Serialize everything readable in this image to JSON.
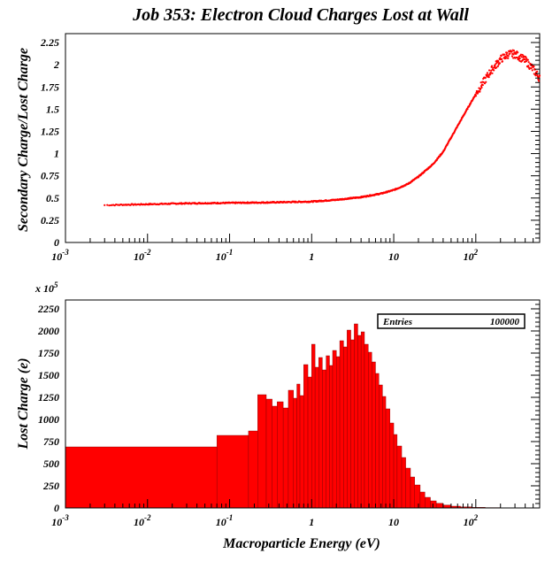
{
  "title": "Job 353: Electron Cloud Charges Lost at Wall",
  "chart_data": [
    {
      "type": "scatter",
      "ylabel": "Secondary Charge/Lost Charge",
      "xscale": "log",
      "xlim": [
        0.001,
        600
      ],
      "ylim": [
        0,
        2.35
      ],
      "xticks": [
        {
          "base": "10",
          "exp": "-3"
        },
        {
          "base": "10",
          "exp": "-2"
        },
        {
          "base": "10",
          "exp": "-1"
        },
        {
          "base": "1",
          "exp": ""
        },
        {
          "base": "10",
          "exp": ""
        },
        {
          "base": "10",
          "exp": "2"
        }
      ],
      "yticks": [
        "0",
        "0.25",
        "0.5",
        "0.75",
        "1",
        "1.25",
        "1.5",
        "1.75",
        "2",
        "2.25"
      ],
      "series_color": "#ff0000",
      "curve": [
        [
          0.003,
          0.42
        ],
        [
          0.01,
          0.43
        ],
        [
          0.03,
          0.44
        ],
        [
          0.1,
          0.445
        ],
        [
          0.3,
          0.45
        ],
        [
          1,
          0.46
        ],
        [
          2,
          0.48
        ],
        [
          4,
          0.51
        ],
        [
          7,
          0.55
        ],
        [
          10,
          0.59
        ],
        [
          15,
          0.66
        ],
        [
          20,
          0.74
        ],
        [
          30,
          0.88
        ],
        [
          40,
          1.02
        ],
        [
          50,
          1.18
        ],
        [
          70,
          1.42
        ],
        [
          100,
          1.67
        ],
        [
          150,
          1.92
        ],
        [
          200,
          2.06
        ],
        [
          250,
          2.12
        ],
        [
          300,
          2.12
        ],
        [
          400,
          2.05
        ],
        [
          500,
          1.95
        ],
        [
          600,
          1.85
        ]
      ]
    },
    {
      "type": "bar",
      "ylabel": "Lost Charge (e)",
      "xlabel": "Macroparticle Energy (eV)",
      "xscale": "log",
      "xlim": [
        0.001,
        600
      ],
      "ylim": [
        0,
        2350
      ],
      "y_multiplier": {
        "base": "x 10",
        "exp": "5"
      },
      "xticks": [
        {
          "base": "10",
          "exp": "-3"
        },
        {
          "base": "10",
          "exp": "-2"
        },
        {
          "base": "10",
          "exp": "-1"
        },
        {
          "base": "1",
          "exp": ""
        },
        {
          "base": "10",
          "exp": ""
        },
        {
          "base": "10",
          "exp": "2"
        }
      ],
      "yticks": [
        "0",
        "250",
        "500",
        "750",
        "1000",
        "1250",
        "1500",
        "1750",
        "2000",
        "2250"
      ],
      "fill_color": "#ff0000",
      "stats": {
        "label": "Entries",
        "value": "100000"
      },
      "bins": [
        [
          0.001,
          0.07,
          690
        ],
        [
          0.07,
          0.17,
          820
        ],
        [
          0.17,
          0.22,
          870
        ],
        [
          0.22,
          0.28,
          1280
        ],
        [
          0.28,
          0.33,
          1230
        ],
        [
          0.33,
          0.38,
          1150
        ],
        [
          0.38,
          0.45,
          1200
        ],
        [
          0.45,
          0.52,
          1130
        ],
        [
          0.52,
          0.6,
          1330
        ],
        [
          0.6,
          0.66,
          1240
        ],
        [
          0.66,
          0.72,
          1400
        ],
        [
          0.72,
          0.8,
          1270
        ],
        [
          0.8,
          0.9,
          1620
        ],
        [
          0.9,
          1.0,
          1480
        ],
        [
          1.0,
          1.1,
          1850
        ],
        [
          1.1,
          1.22,
          1590
        ],
        [
          1.22,
          1.35,
          1700
        ],
        [
          1.35,
          1.5,
          1560
        ],
        [
          1.5,
          1.65,
          1720
        ],
        [
          1.65,
          1.8,
          1610
        ],
        [
          1.8,
          2.0,
          1780
        ],
        [
          2.0,
          2.2,
          1710
        ],
        [
          2.2,
          2.45,
          1890
        ],
        [
          2.45,
          2.7,
          1820
        ],
        [
          2.7,
          3.0,
          2010
        ],
        [
          3.0,
          3.3,
          1900
        ],
        [
          3.3,
          3.65,
          2080
        ],
        [
          3.65,
          4.0,
          1950
        ],
        [
          4.0,
          4.4,
          1990
        ],
        [
          4.4,
          4.9,
          1850
        ],
        [
          4.9,
          5.4,
          1760
        ],
        [
          5.4,
          6.0,
          1650
        ],
        [
          6.0,
          6.6,
          1520
        ],
        [
          6.6,
          7.3,
          1390
        ],
        [
          7.3,
          8.0,
          1260
        ],
        [
          8.0,
          9.0,
          1120
        ],
        [
          9.0,
          10.0,
          960
        ],
        [
          10,
          11,
          830
        ],
        [
          11,
          12.5,
          700
        ],
        [
          12.5,
          14,
          570
        ],
        [
          14,
          16,
          450
        ],
        [
          16,
          18,
          350
        ],
        [
          18,
          21,
          260
        ],
        [
          21,
          24,
          180
        ],
        [
          24,
          28,
          120
        ],
        [
          28,
          33,
          80
        ],
        [
          33,
          40,
          52
        ],
        [
          40,
          50,
          32
        ],
        [
          50,
          65,
          20
        ],
        [
          65,
          90,
          12
        ],
        [
          90,
          130,
          7
        ],
        [
          130,
          200,
          4
        ],
        [
          200,
          350,
          2
        ],
        [
          350,
          600,
          1
        ]
      ]
    }
  ]
}
